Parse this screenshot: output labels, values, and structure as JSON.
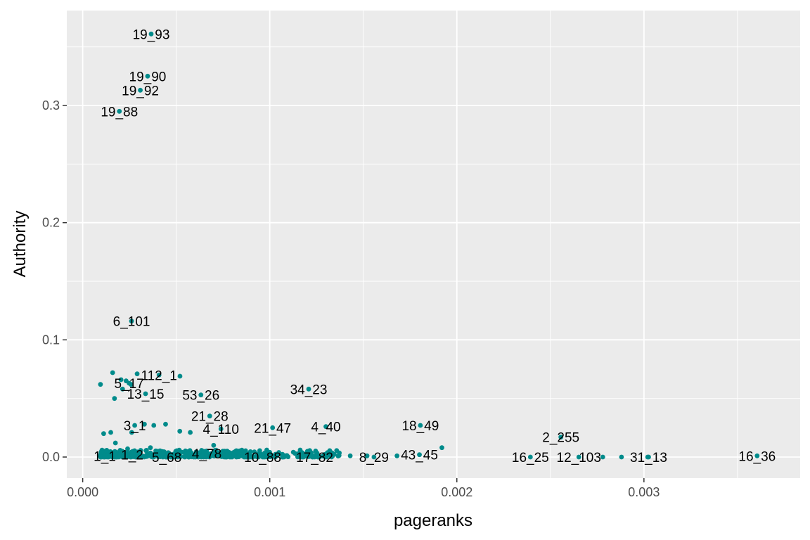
{
  "chart_data": {
    "type": "scatter",
    "xlabel": "pageranks",
    "ylabel": "Authority",
    "xlim": [
      -8.5e-05,
      0.003835
    ],
    "ylim": [
      -0.018,
      0.381
    ],
    "x_ticks": [
      {
        "value": 0.0,
        "label": "0.000"
      },
      {
        "value": 0.001,
        "label": "0.001"
      },
      {
        "value": 0.002,
        "label": "0.002"
      },
      {
        "value": 0.003,
        "label": "0.003"
      }
    ],
    "y_ticks": [
      {
        "value": 0.0,
        "label": "0.0"
      },
      {
        "value": 0.1,
        "label": "0.1"
      },
      {
        "value": 0.2,
        "label": "0.2"
      },
      {
        "value": 0.3,
        "label": "0.3"
      }
    ],
    "grid": true,
    "point_color": "#008b8b",
    "panel_background": "#ebebeb",
    "grid_color": "#ffffff",
    "labeled_points": [
      {
        "label": "19_93",
        "x": 0.000366,
        "y": 0.361
      },
      {
        "label": "19_90",
        "x": 0.000347,
        "y": 0.325
      },
      {
        "label": "19_92",
        "x": 0.000308,
        "y": 0.313
      },
      {
        "label": "19_88",
        "x": 0.000196,
        "y": 0.295
      },
      {
        "label": "6_101",
        "x": 0.000261,
        "y": 0.116
      },
      {
        "label": "112_1",
        "x": 0.000408,
        "y": 0.07
      },
      {
        "label": "5_17",
        "x": 0.000248,
        "y": 0.063
      },
      {
        "label": "13_15",
        "x": 0.000336,
        "y": 0.054
      },
      {
        "label": "53_26",
        "x": 0.000632,
        "y": 0.053
      },
      {
        "label": "34_23",
        "x": 0.001208,
        "y": 0.058
      },
      {
        "label": "21_28",
        "x": 0.000679,
        "y": 0.035
      },
      {
        "label": "3_1",
        "x": 0.000278,
        "y": 0.027
      },
      {
        "label": "4_110",
        "x": 0.000739,
        "y": 0.024
      },
      {
        "label": "21_47",
        "x": 0.001015,
        "y": 0.025
      },
      {
        "label": "4_40",
        "x": 0.0013,
        "y": 0.026
      },
      {
        "label": "18_49",
        "x": 0.001805,
        "y": 0.027
      },
      {
        "label": "2_255",
        "x": 0.002556,
        "y": 0.017
      },
      {
        "label": "1_1",
        "x": 0.000118,
        "y": 0.001
      },
      {
        "label": "1_2",
        "x": 0.000265,
        "y": 0.002
      },
      {
        "label": "5_68",
        "x": 0.000449,
        "y": 0.0
      },
      {
        "label": "4_78",
        "x": 0.000663,
        "y": 0.003
      },
      {
        "label": "10_88",
        "x": 0.000962,
        "y": 0.0
      },
      {
        "label": "17_82",
        "x": 0.00124,
        "y": 0.0
      },
      {
        "label": "8_29",
        "x": 0.001557,
        "y": 0.0
      },
      {
        "label": "43_45",
        "x": 0.0018,
        "y": 0.002
      },
      {
        "label": "16_25",
        "x": 0.002393,
        "y": 0.0
      },
      {
        "label": "12_103",
        "x": 0.002652,
        "y": 0.0
      },
      {
        "label": "31_13",
        "x": 0.003025,
        "y": 0.0
      },
      {
        "label": "16_36",
        "x": 0.003605,
        "y": 0.001
      }
    ],
    "unlabeled_points": [
      {
        "x": 0.00016,
        "y": 0.072
      },
      {
        "x": 0.000291,
        "y": 0.071
      },
      {
        "x": 0.00052,
        "y": 0.069
      },
      {
        "x": 0.000205,
        "y": 0.066
      },
      {
        "x": 0.000232,
        "y": 0.065
      },
      {
        "x": 0.000258,
        "y": 0.062
      },
      {
        "x": 9.5e-05,
        "y": 0.062
      },
      {
        "x": 0.000213,
        "y": 0.058
      },
      {
        "x": 0.00017,
        "y": 0.05
      },
      {
        "x": 0.00033,
        "y": 0.028
      },
      {
        "x": 0.00038,
        "y": 0.027
      },
      {
        "x": 0.000443,
        "y": 0.028
      },
      {
        "x": 0.000519,
        "y": 0.022
      },
      {
        "x": 0.00015,
        "y": 0.021
      },
      {
        "x": 0.000112,
        "y": 0.02
      },
      {
        "x": 0.000262,
        "y": 0.021
      },
      {
        "x": 0.000575,
        "y": 0.021
      },
      {
        "x": 0.0007,
        "y": 0.01
      },
      {
        "x": 0.000175,
        "y": 0.012
      },
      {
        "x": 0.000362,
        "y": 0.008
      },
      {
        "x": 0.00024,
        "y": 0.007
      },
      {
        "x": 0.00143,
        "y": 0.001
      },
      {
        "x": 0.00152,
        "y": 0.001
      },
      {
        "x": 0.00168,
        "y": 0.001
      },
      {
        "x": 0.00192,
        "y": 0.008
      },
      {
        "x": 0.00278,
        "y": 0.0
      },
      {
        "x": 0.00288,
        "y": 0.0
      },
      {
        "x": 0.00302,
        "y": 0.0
      }
    ],
    "dense_band": {
      "x_min": 9.5e-05,
      "x_max": 0.00138,
      "y_min": 0.0,
      "y_max": 0.006
    }
  }
}
